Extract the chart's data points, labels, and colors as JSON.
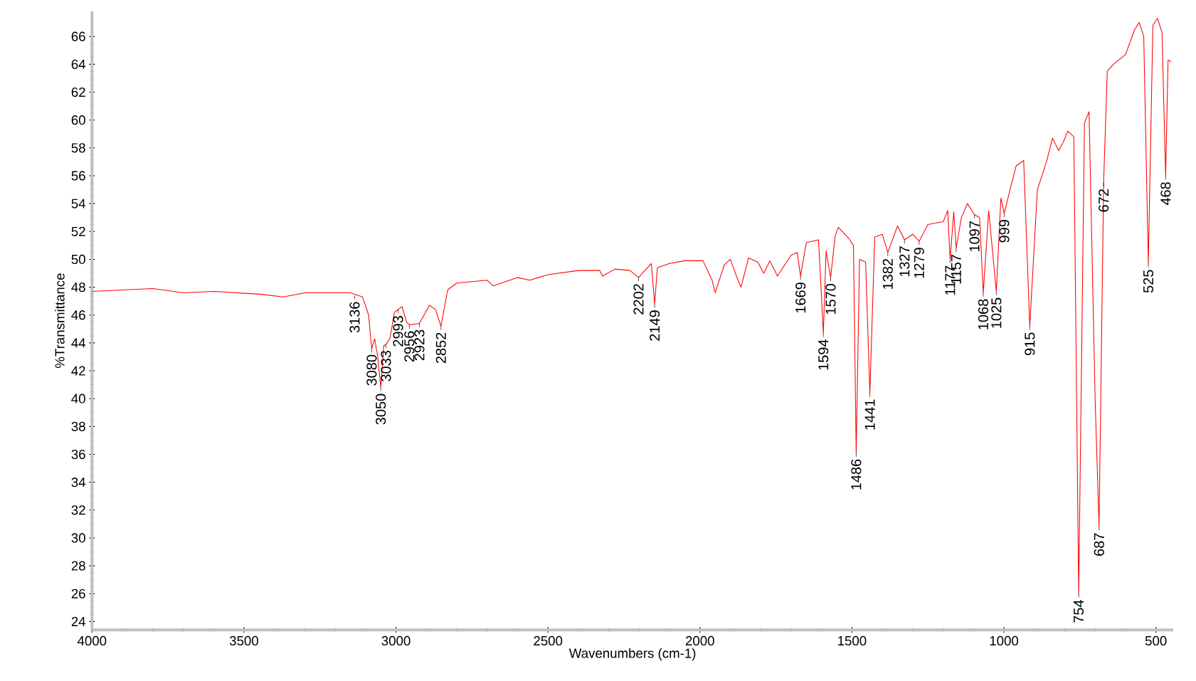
{
  "chart_data": {
    "type": "line",
    "xlabel": "Wavenumbers (cm-1)",
    "ylabel": "%Transmittance",
    "color": "#ff0000",
    "line_style": "solid",
    "xlim": [
      4000,
      443
    ],
    "ylim": [
      23.4,
      67.8
    ],
    "xticks": [
      4000,
      3500,
      3000,
      2500,
      2000,
      1500,
      1000,
      500
    ],
    "yticks": [
      24,
      26,
      28,
      30,
      32,
      34,
      36,
      38,
      40,
      42,
      44,
      46,
      48,
      50,
      52,
      54,
      56,
      58,
      60,
      62,
      64,
      66
    ],
    "x": [
      4000,
      3800,
      3700,
      3600,
      3450,
      3370,
      3300,
      3150,
      3110,
      3090,
      3080,
      3070,
      3060,
      3050,
      3040,
      3033,
      3020,
      3005,
      2993,
      2980,
      2965,
      2956,
      2923,
      2890,
      2870,
      2852,
      2830,
      2800,
      2700,
      2680,
      2600,
      2560,
      2500,
      2400,
      2330,
      2320,
      2280,
      2230,
      2202,
      2160,
      2149,
      2140,
      2100,
      2050,
      1990,
      1960,
      1950,
      1920,
      1900,
      1880,
      1865,
      1840,
      1810,
      1790,
      1770,
      1745,
      1700,
      1680,
      1669,
      1650,
      1610,
      1594,
      1585,
      1570,
      1555,
      1545,
      1510,
      1495,
      1486,
      1475,
      1455,
      1441,
      1425,
      1400,
      1382,
      1350,
      1327,
      1300,
      1279,
      1250,
      1200,
      1185,
      1177,
      1165,
      1157,
      1140,
      1120,
      1097,
      1080,
      1068,
      1050,
      1025,
      1010,
      999,
      980,
      960,
      935,
      915,
      890,
      860,
      840,
      820,
      805,
      790,
      770,
      754,
      735,
      720,
      700,
      687,
      672,
      660,
      640,
      600,
      570,
      555,
      540,
      525,
      510,
      495,
      480,
      468,
      460,
      450
    ],
    "values": [
      47.7,
      47.9,
      47.6,
      47.7,
      47.5,
      47.3,
      47.6,
      47.6,
      47.3,
      46.0,
      43.6,
      44.3,
      43.0,
      40.8,
      43.8,
      43.9,
      44.3,
      46.2,
      46.4,
      46.6,
      45.5,
      45.3,
      45.4,
      46.7,
      46.4,
      45.2,
      47.8,
      48.3,
      48.5,
      48.1,
      48.7,
      48.5,
      48.9,
      49.2,
      49.2,
      48.8,
      49.3,
      49.2,
      48.7,
      49.7,
      46.8,
      49.4,
      49.7,
      49.9,
      49.9,
      48.5,
      47.6,
      49.6,
      50.0,
      48.8,
      48.0,
      50.1,
      49.8,
      49.0,
      49.9,
      48.8,
      50.3,
      50.5,
      48.8,
      51.2,
      51.4,
      44.7,
      50.6,
      48.7,
      51.7,
      52.3,
      51.5,
      51.0,
      36.1,
      50.0,
      49.8,
      40.4,
      51.6,
      51.8,
      50.5,
      52.4,
      51.4,
      51.8,
      51.3,
      52.5,
      52.7,
      53.5,
      50.0,
      53.4,
      50.8,
      53.0,
      54.0,
      53.2,
      53.0,
      47.6,
      53.5,
      47.7,
      54.4,
      53.3,
      55.0,
      56.7,
      57.1,
      45.2,
      55.0,
      57.0,
      58.7,
      57.8,
      58.4,
      59.2,
      58.8,
      26.0,
      59.8,
      60.6,
      40.0,
      30.8,
      55.5,
      63.5,
      64.0,
      64.7,
      66.5,
      67.0,
      66.0,
      49.7,
      66.8,
      67.3,
      66.3,
      56.0,
      64.3,
      64.2
    ],
    "annotations": [
      {
        "text": "3136",
        "x": 3136,
        "y": 47.4
      },
      {
        "text": "3080",
        "x": 3080,
        "y": 43.6
      },
      {
        "text": "3050",
        "x": 3050,
        "y": 40.8
      },
      {
        "text": "3033",
        "x": 3033,
        "y": 43.9
      },
      {
        "text": "2993",
        "x": 2993,
        "y": 46.4
      },
      {
        "text": "2956",
        "x": 2956,
        "y": 45.3
      },
      {
        "text": "2923",
        "x": 2923,
        "y": 45.4
      },
      {
        "text": "2852",
        "x": 2852,
        "y": 45.2
      },
      {
        "text": "2202",
        "x": 2202,
        "y": 48.7
      },
      {
        "text": "2149",
        "x": 2149,
        "y": 46.8
      },
      {
        "text": "1669",
        "x": 1669,
        "y": 48.8
      },
      {
        "text": "1594",
        "x": 1594,
        "y": 44.7
      },
      {
        "text": "1570",
        "x": 1570,
        "y": 48.7
      },
      {
        "text": "1486",
        "x": 1486,
        "y": 36.1
      },
      {
        "text": "1441",
        "x": 1441,
        "y": 40.4
      },
      {
        "text": "1382",
        "x": 1382,
        "y": 50.5
      },
      {
        "text": "1327",
        "x": 1327,
        "y": 51.4
      },
      {
        "text": "1279",
        "x": 1279,
        "y": 51.3
      },
      {
        "text": "1177",
        "x": 1177,
        "y": 50.0
      },
      {
        "text": "1157",
        "x": 1157,
        "y": 50.8
      },
      {
        "text": "1097",
        "x": 1097,
        "y": 53.2
      },
      {
        "text": "1068",
        "x": 1068,
        "y": 47.6
      },
      {
        "text": "1025",
        "x": 1025,
        "y": 47.7
      },
      {
        "text": "999",
        "x": 999,
        "y": 53.3
      },
      {
        "text": "915",
        "x": 915,
        "y": 45.2
      },
      {
        "text": "754",
        "x": 754,
        "y": 26.0
      },
      {
        "text": "687",
        "x": 687,
        "y": 30.8
      },
      {
        "text": "672",
        "x": 672,
        "y": 55.5
      },
      {
        "text": "525",
        "x": 525,
        "y": 49.7
      },
      {
        "text": "468",
        "x": 468,
        "y": 56.0
      }
    ]
  }
}
